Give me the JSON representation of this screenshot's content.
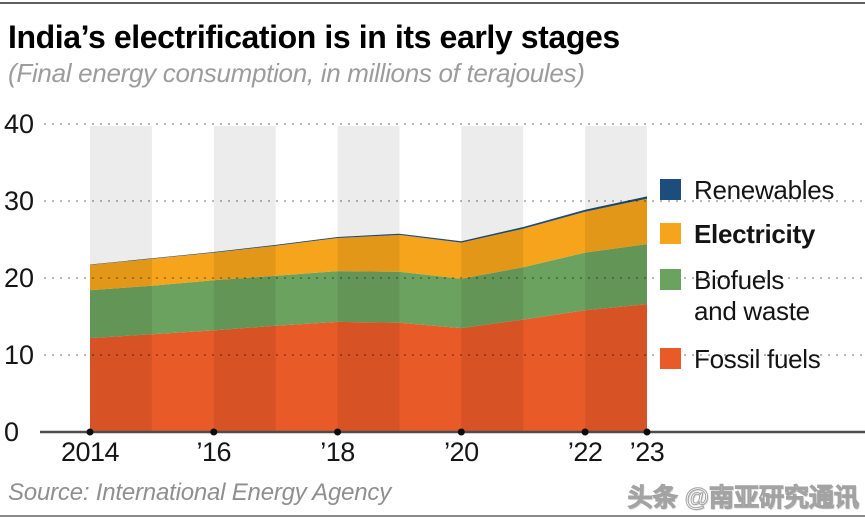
{
  "header": {
    "title": "India’s electrification is in its early stages",
    "subtitle": "(Final energy consumption, in millions of terajoules)"
  },
  "footer": {
    "source": "Source: International Energy Agency",
    "watermark": "头条 @南亚研究通讯"
  },
  "legend": {
    "items": [
      {
        "label": "Renewables",
        "color": "#1d4d7c",
        "bold": false
      },
      {
        "label": "Electricity",
        "color": "#f5a41c",
        "bold": true
      },
      {
        "label": "Biofuels\nand waste",
        "color": "#6ba25f",
        "bold": false
      },
      {
        "label": "Fossil fuels",
        "color": "#e95a29",
        "bold": false
      }
    ]
  },
  "chart_data": {
    "type": "area",
    "stacked": true,
    "title": "India’s electrification is in its early stages",
    "ylabel": "Final energy consumption, millions of terajoules",
    "x": [
      2014,
      2015,
      2016,
      2017,
      2018,
      2019,
      2020,
      2021,
      2022,
      2023
    ],
    "series": [
      {
        "name": "Fossil fuels",
        "color": "#e95a29",
        "values": [
          12.2,
          12.7,
          13.2,
          13.8,
          14.3,
          14.2,
          13.5,
          14.6,
          15.8,
          16.6
        ]
      },
      {
        "name": "Biofuels and waste",
        "color": "#6ba25f",
        "values": [
          6.2,
          6.3,
          6.5,
          6.5,
          6.6,
          6.6,
          6.4,
          6.8,
          7.5,
          7.8
        ]
      },
      {
        "name": "Electricity",
        "color": "#f5a41c",
        "values": [
          3.3,
          3.5,
          3.6,
          3.9,
          4.3,
          4.8,
          4.7,
          5.0,
          5.3,
          5.9
        ]
      },
      {
        "name": "Renewables",
        "color": "#1d4d7c",
        "values": [
          0.05,
          0.06,
          0.08,
          0.1,
          0.12,
          0.15,
          0.18,
          0.22,
          0.26,
          0.3
        ]
      }
    ],
    "ylim": [
      0,
      40
    ],
    "yticks": [
      0,
      10,
      20,
      30,
      40
    ],
    "xtick_labels": [
      {
        "x": 2014,
        "label": "2014"
      },
      {
        "x": 2016,
        "label": "’16"
      },
      {
        "x": 2018,
        "label": "’18"
      },
      {
        "x": 2020,
        "label": "’20"
      },
      {
        "x": 2022,
        "label": "’22"
      },
      {
        "x": 2023,
        "label": "’23"
      }
    ],
    "grid": "dotted horizontal lines, full width",
    "background_bands": "light gray vertical bands on alternate year columns starting 2014, 2016, 2018, 2020, 2022",
    "legend_position": "right"
  }
}
